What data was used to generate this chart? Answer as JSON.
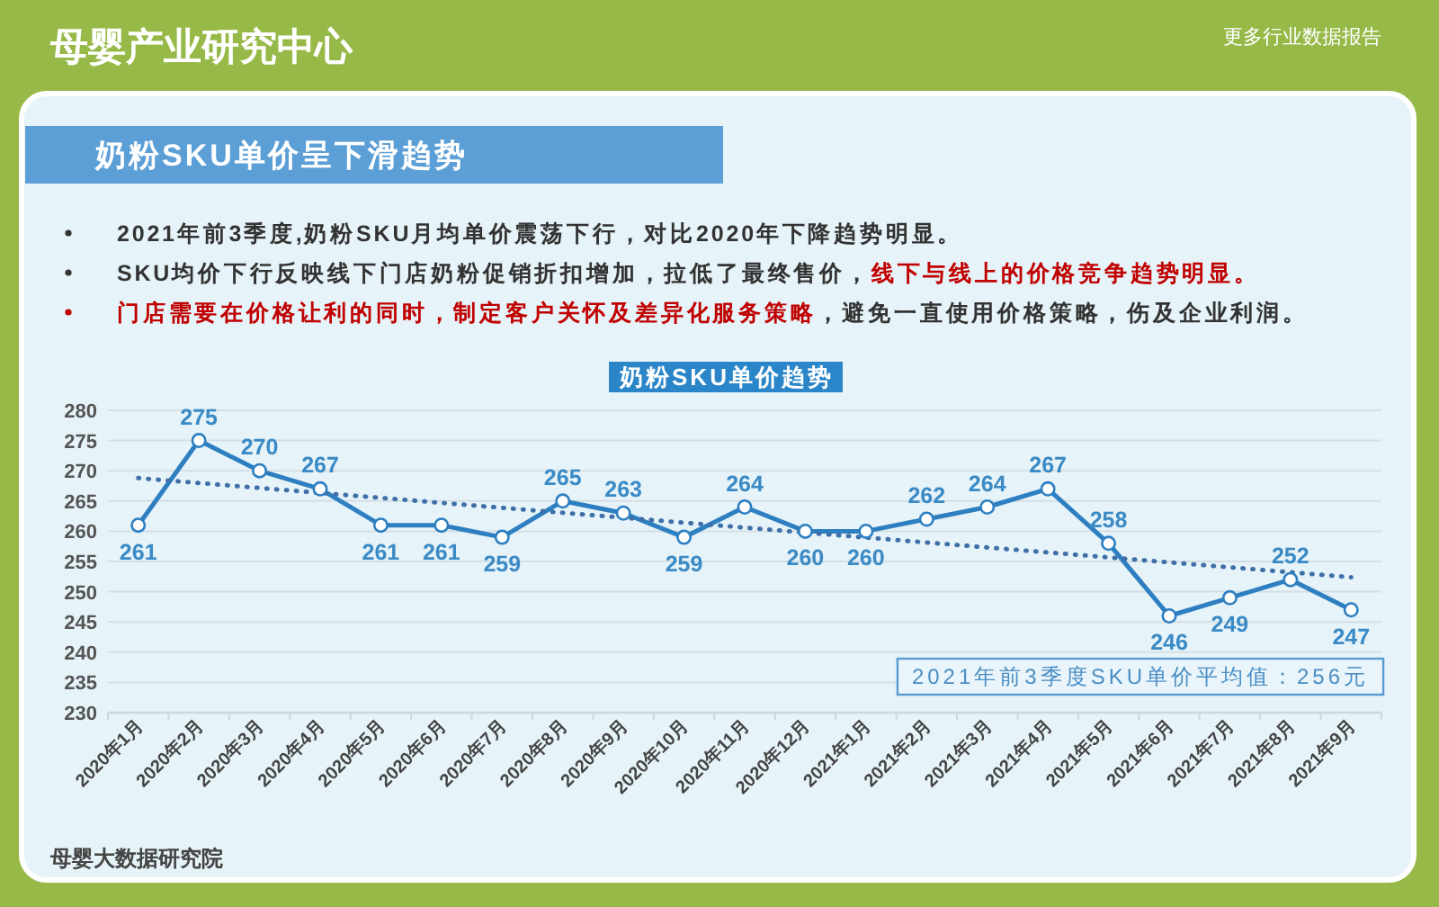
{
  "chart_data": {
    "type": "line",
    "title": "奶粉SKU单价呈下滑趋势",
    "subtitle": "奶粉SKU单价趋势",
    "categories": [
      "2020年1月",
      "2020年2月",
      "2020年3月",
      "2020年4月",
      "2020年5月",
      "2020年6月",
      "2020年7月",
      "2020年8月",
      "2020年9月",
      "2020年10月",
      "2020年11月",
      "2020年12月",
      "2021年1月",
      "2021年2月",
      "2021年3月",
      "2021年4月",
      "2021年5月",
      "2021年6月",
      "2021年7月",
      "2021年8月",
      "2021年9月"
    ],
    "series": [
      {
        "color": "#2d7fc1",
        "values": [
          261,
          275,
          270,
          267,
          261,
          261,
          259,
          265,
          263,
          259,
          264,
          260,
          260,
          262,
          264,
          267,
          258,
          246,
          249,
          252,
          247
        ],
        "value_labels": [
          "261",
          "275",
          "270",
          "267",
          "261",
          "261",
          "259",
          "265",
          "263",
          "259",
          "264",
          "260",
          "260",
          "262",
          "264",
          "267",
          "258",
          "246",
          "249",
          "252",
          "247"
        ]
      },
      {
        "type": "line",
        "color": "#3f6fa8",
        "x": [
          "2020年1月",
          "2021年9月"
        ],
        "values": [
          268.8,
          252.4
        ],
        "line_style": "dotted",
        "marker": "none"
      }
    ],
    "ylim": [
      230,
      280
    ],
    "yticks": [
      230,
      235,
      240,
      245,
      250,
      255,
      260,
      265,
      270,
      275,
      280
    ],
    "grid": "y",
    "marker": "circle",
    "annotations": [
      "2021年前3季度,奶粉SKU月均单价震荡下行，对比2020年下降趋势明显。",
      "SKU均价下行反映线下门店奶粉促销折扣增加，拉低了最终售价，**线下与线上的价格竞争趋势明显。**",
      "**门店需要在价格让利的同时，制定客户关怀及差异化服务策略**，避免一直使用价格策略，伤及企业利润。",
      "2021年前3季度SKU单价平均值：256元",
      "母婴产业研究中心",
      "更多行业数据报告",
      "母婴大数据研究院"
    ]
  }
}
